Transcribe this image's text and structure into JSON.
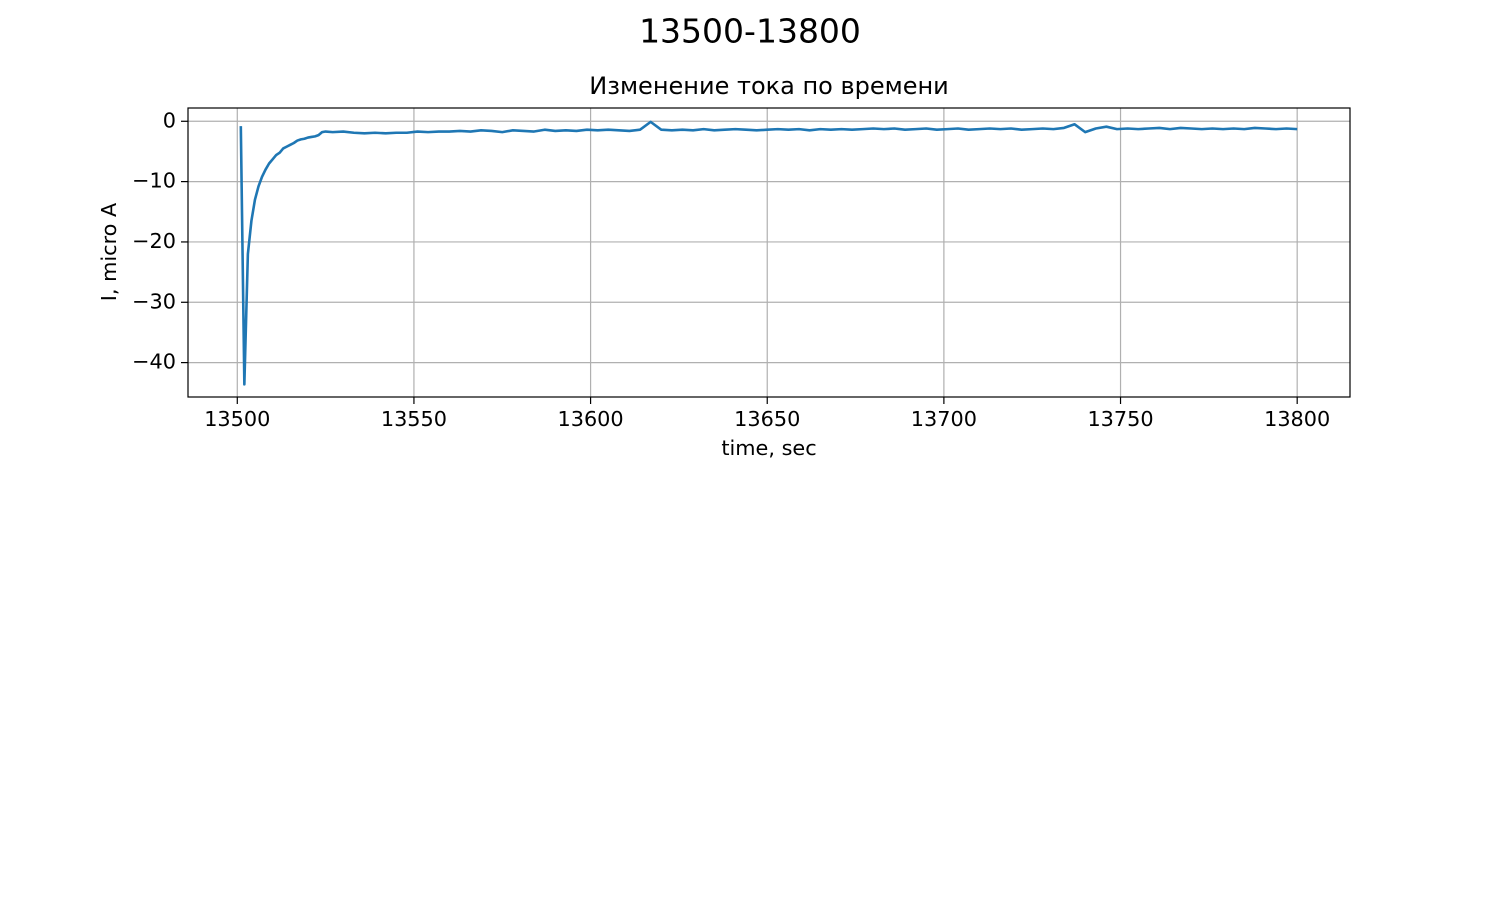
{
  "chart_data": {
    "type": "line",
    "suptitle": "13500-13800",
    "title": "Изменение тока по времени",
    "xlabel": "time, sec",
    "ylabel": "I, micro A",
    "grid": true,
    "x": [
      13501,
      13502,
      13503,
      13504,
      13505,
      13506,
      13507,
      13508,
      13509,
      13510,
      13511,
      13512,
      13513,
      13514,
      13515,
      13516,
      13517,
      13518,
      13519,
      13520,
      13521,
      13522,
      13523,
      13524,
      13525,
      13527,
      13530,
      13533,
      13536,
      13539,
      13542,
      13545,
      13548,
      13551,
      13554,
      13557,
      13560,
      13563,
      13566,
      13569,
      13572,
      13575,
      13578,
      13581,
      13584,
      13587,
      13590,
      13593,
      13596,
      13599,
      13602,
      13605,
      13608,
      13611,
      13614,
      13617,
      13620,
      13623,
      13626,
      13629,
      13632,
      13635,
      13638,
      13641,
      13644,
      13647,
      13650,
      13653,
      13656,
      13659,
      13662,
      13665,
      13668,
      13671,
      13674,
      13677,
      13680,
      13683,
      13686,
      13689,
      13692,
      13695,
      13698,
      13701,
      13704,
      13707,
      13710,
      13713,
      13716,
      13719,
      13722,
      13725,
      13728,
      13731,
      13734,
      13737,
      13740,
      13743,
      13746,
      13749,
      13752,
      13755,
      13758,
      13761,
      13764,
      13767,
      13770,
      13773,
      13776,
      13779,
      13782,
      13785,
      13788,
      13791,
      13794,
      13797,
      13800
    ],
    "series": [
      {
        "color": "#1f77b4",
        "values": [
          -0.8,
          -43.6,
          -22,
          -16.5,
          -13,
          -10.8,
          -9.2,
          -8,
          -7,
          -6.3,
          -5.6,
          -5.2,
          -4.5,
          -4.2,
          -3.9,
          -3.6,
          -3.2,
          -3.0,
          -2.9,
          -2.7,
          -2.6,
          -2.5,
          -2.3,
          -1.8,
          -1.7,
          -1.8,
          -1.7,
          -1.9,
          -2.0,
          -1.9,
          -2.0,
          -1.9,
          -1.9,
          -1.7,
          -1.8,
          -1.7,
          -1.7,
          -1.6,
          -1.7,
          -1.5,
          -1.6,
          -1.8,
          -1.5,
          -1.6,
          -1.7,
          -1.4,
          -1.6,
          -1.5,
          -1.6,
          -1.4,
          -1.5,
          -1.4,
          -1.5,
          -1.6,
          -1.4,
          -0.1,
          -1.4,
          -1.5,
          -1.4,
          -1.5,
          -1.3,
          -1.5,
          -1.4,
          -1.3,
          -1.4,
          -1.5,
          -1.4,
          -1.3,
          -1.4,
          -1.3,
          -1.5,
          -1.3,
          -1.4,
          -1.3,
          -1.4,
          -1.3,
          -1.2,
          -1.3,
          -1.2,
          -1.4,
          -1.3,
          -1.2,
          -1.4,
          -1.3,
          -1.2,
          -1.4,
          -1.3,
          -1.2,
          -1.3,
          -1.2,
          -1.4,
          -1.3,
          -1.2,
          -1.3,
          -1.1,
          -0.5,
          -1.8,
          -1.2,
          -0.9,
          -1.3,
          -1.2,
          -1.3,
          -1.2,
          -1.1,
          -1.3,
          -1.1,
          -1.2,
          -1.3,
          -1.2,
          -1.3,
          -1.2,
          -1.3,
          -1.1,
          -1.2,
          -1.3,
          -1.2,
          -1.3
        ]
      }
    ],
    "xlim": [
      13486.05,
      13814.95
    ],
    "ylim": [
      -45.7,
      2.2
    ],
    "xticks": [
      13500,
      13550,
      13600,
      13650,
      13700,
      13750,
      13800
    ],
    "yticks": [
      {
        "value": -40,
        "label": "−40"
      },
      {
        "value": -30,
        "label": "−30"
      },
      {
        "value": -20,
        "label": "−20"
      },
      {
        "value": -10,
        "label": "−10"
      },
      0
    ]
  }
}
